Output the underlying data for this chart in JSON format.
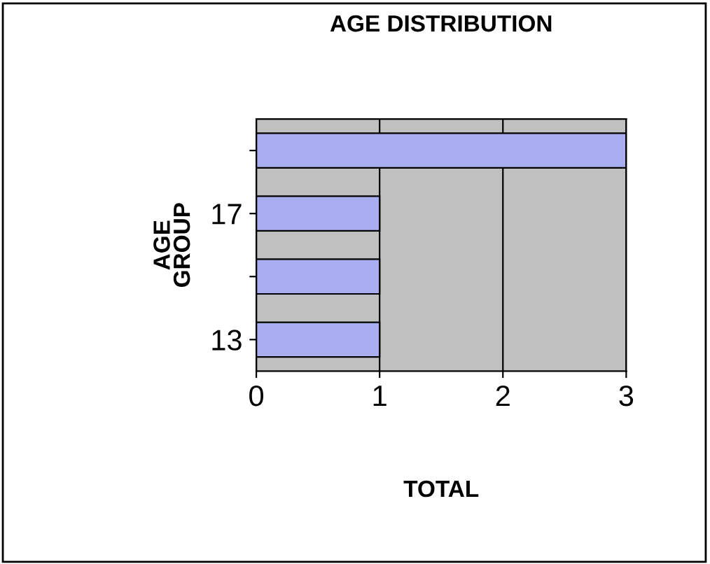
{
  "chart_data": {
    "type": "bar",
    "orientation": "horizontal",
    "title": "AGE DISTRIBUTION",
    "xlabel": "TOTAL",
    "ylabel": "AGE\nGROUP",
    "categories": [
      null,
      "17",
      null,
      "13"
    ],
    "values": [
      3,
      1,
      1,
      1
    ],
    "color": "#a8aef0",
    "xlim": [
      0,
      3
    ],
    "xticks": [
      0,
      1,
      2,
      3
    ],
    "grid": "x",
    "legend": false
  }
}
